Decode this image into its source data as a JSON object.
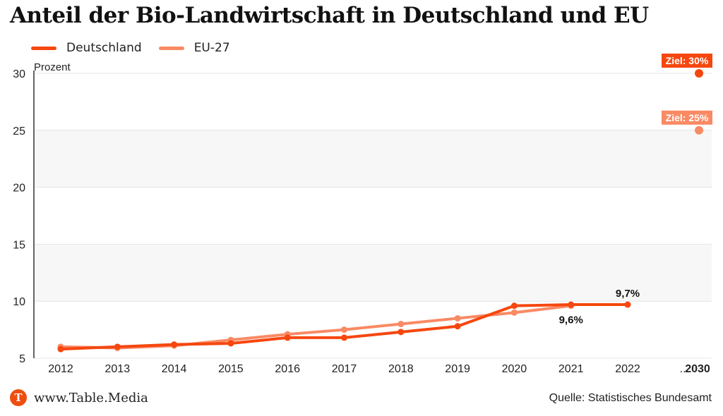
{
  "title": "Anteil der Bio-Landwirtschaft in Deutschland und EU",
  "colors": {
    "deutschland": "#f5470f",
    "eu": "#f98a64",
    "band": "#f7f7f7"
  },
  "footer": {
    "logo_letter": "T",
    "site": "www.Table.Media",
    "source": "Quelle: Statistisches Bundesamt"
  },
  "chart_data": {
    "type": "line",
    "title": "Anteil der Bio-Landwirtschaft in Deutschland und EU",
    "ylabel": "Prozent",
    "xlabel": "",
    "ylim": [
      5,
      30
    ],
    "yticks": [
      5,
      10,
      15,
      20,
      25,
      30
    ],
    "grid": true,
    "legend_position": "top-left",
    "categories": [
      "2012",
      "2013",
      "2014",
      "2015",
      "2016",
      "2017",
      "2018",
      "2019",
      "2020",
      "2021",
      "2022",
      "...",
      "2030"
    ],
    "series": [
      {
        "name": "Deutschland",
        "values": [
          5.8,
          6.0,
          6.2,
          6.3,
          6.8,
          6.8,
          7.3,
          7.8,
          9.6,
          9.7,
          9.7,
          null,
          null
        ]
      },
      {
        "name": "EU-27",
        "values": [
          6.0,
          5.9,
          6.1,
          6.6,
          7.1,
          7.5,
          8.0,
          8.5,
          9.0,
          9.6,
          null,
          null,
          null
        ]
      }
    ],
    "targets": [
      {
        "series": "Deutschland",
        "x": "2030",
        "value": 30,
        "label": "Ziel: 30%"
      },
      {
        "series": "EU-27",
        "x": "2030",
        "value": 25,
        "label": "Ziel: 25%"
      }
    ],
    "annotations": [
      {
        "series": "Deutschland",
        "x": "2022",
        "value": 9.7,
        "label": "9,7%",
        "position": "above"
      },
      {
        "series": "EU-27",
        "x": "2021",
        "value": 9.6,
        "label": "9,6%",
        "position": "below"
      }
    ]
  }
}
